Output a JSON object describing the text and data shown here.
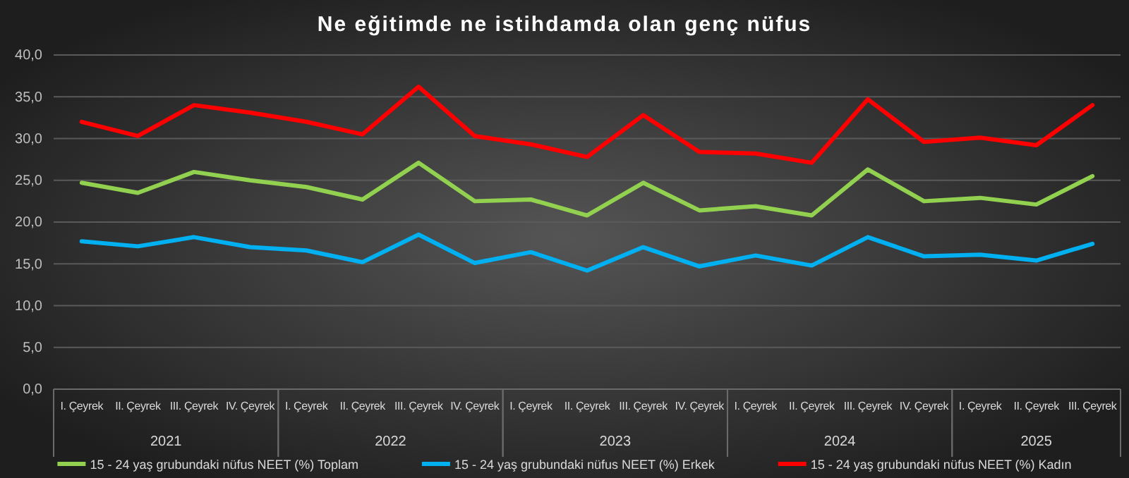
{
  "chart_data": {
    "type": "line",
    "title": "Ne eğitimde ne istihdamda olan genç nüfus",
    "categories": [
      "I. Çeyrek",
      "II. Çeyrek",
      "III. Çeyrek",
      "IV. Çeyrek",
      "I. Çeyrek",
      "II. Çeyrek",
      "III. Çeyrek",
      "IV. Çeyrek",
      "I. Çeyrek",
      "II. Çeyrek",
      "III. Çeyrek",
      "IV. Çeyrek",
      "I. Çeyrek",
      "II. Çeyrek",
      "III. Çeyrek",
      "IV. Çeyrek",
      "I. Çeyrek",
      "II. Çeyrek",
      "III. Çeyrek"
    ],
    "annotations": [
      "2021",
      "2022",
      "2023",
      "2024",
      "2025"
    ],
    "series": [
      {
        "name": "15 - 24 yaş grubundaki nüfus NEET (%) Toplam",
        "color": "#92d050",
        "values": [
          24.7,
          23.5,
          26.0,
          25.0,
          24.2,
          22.7,
          27.1,
          22.5,
          22.7,
          20.8,
          24.7,
          21.4,
          21.9,
          20.8,
          26.3,
          22.5,
          22.9,
          22.1,
          25.5
        ]
      },
      {
        "name": "15 - 24 yaş grubundaki nüfus NEET (%) Erkek",
        "color": "#00b0f0",
        "values": [
          17.7,
          17.1,
          18.2,
          17.0,
          16.6,
          15.2,
          18.5,
          15.1,
          16.4,
          14.2,
          17.0,
          14.7,
          16.0,
          14.8,
          18.2,
          15.9,
          16.1,
          15.4,
          17.4
        ]
      },
      {
        "name": "15 - 24 yaş grubundaki nüfus NEET (%) Kadın",
        "color": "#ff0000",
        "values": [
          32.0,
          30.3,
          34.0,
          33.1,
          32.0,
          30.5,
          36.2,
          30.3,
          29.3,
          27.8,
          32.8,
          28.4,
          28.2,
          27.1,
          34.7,
          29.6,
          30.1,
          29.2,
          34.0
        ]
      }
    ],
    "ylim": [
      0,
      40
    ],
    "yticks": [
      {
        "value": 0,
        "label": "0,0"
      },
      {
        "value": 5,
        "label": "5,0"
      },
      {
        "value": 10,
        "label": "10,0"
      },
      {
        "value": 15,
        "label": "15,0"
      },
      {
        "value": 20,
        "label": "20,0"
      },
      {
        "value": 25,
        "label": "25,0"
      },
      {
        "value": 30,
        "label": "30,0"
      },
      {
        "value": 35,
        "label": "35,0"
      },
      {
        "value": 40,
        "label": "40,0"
      }
    ],
    "grid": "y",
    "legend": "bottom",
    "marker": "none",
    "line_style": "solid"
  }
}
